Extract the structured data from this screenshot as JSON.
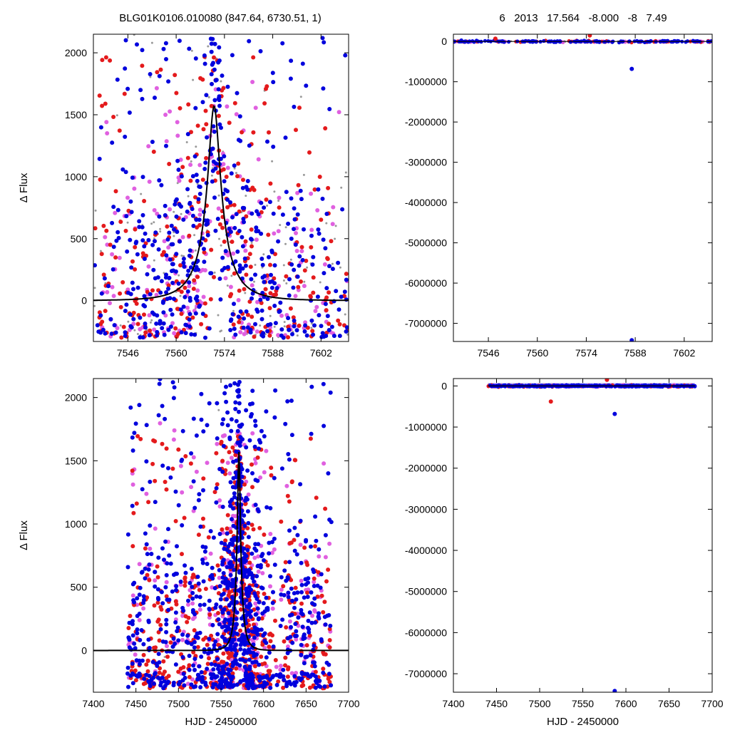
{
  "header": {
    "left_title": "BLG01K0106.010080 (847.64, 6730.51,    1)",
    "right_title": "6   2013   17.564   -8.000   -8   7.49"
  },
  "colors": {
    "gray": "#999999",
    "violet": "#e060e0",
    "red": "#e41a1c",
    "blue": "#0000dd",
    "model": "#000000"
  },
  "chart_data": [
    {
      "type": "scatter",
      "xlabel": "",
      "ylabel": "Δ Flux",
      "xlim": [
        7536,
        7610
      ],
      "ylim": [
        -330,
        2150
      ],
      "xticks": [
        7546,
        7560,
        7574,
        7588,
        7602
      ],
      "yticks": [
        0,
        500,
        1000,
        1500,
        2000
      ],
      "model_curve": {
        "t0": 7571,
        "peak": 1570,
        "tE": 9,
        "u0": 0.2,
        "baseline": 0
      },
      "series": [
        {
          "color": "gray",
          "approx_points": 150,
          "x_range": [
            7536,
            7610
          ],
          "y_range": [
            -300,
            2150
          ]
        },
        {
          "color": "violet",
          "approx_points": 200,
          "x_range": [
            7538,
            7610
          ],
          "y_range": [
            -300,
            1850
          ]
        },
        {
          "color": "red",
          "approx_points": 300,
          "x_range": [
            7536,
            7610
          ],
          "y_range": [
            -300,
            1970
          ]
        },
        {
          "color": "blue",
          "approx_points": 500,
          "x_range": [
            7536,
            7610
          ],
          "y_range": [
            -300,
            2150
          ]
        }
      ]
    },
    {
      "type": "scatter",
      "xlabel": "",
      "ylabel": "",
      "xlim": [
        7536,
        7610
      ],
      "ylim": [
        -7450000,
        180000
      ],
      "xticks": [
        7546,
        7560,
        7574,
        7588,
        7602
      ],
      "yticks": [
        0,
        -1000000,
        -2000000,
        -3000000,
        -4000000,
        -5000000,
        -6000000,
        -7000000
      ],
      "outliers": [
        {
          "x": 7587,
          "y": -680000
        },
        {
          "x": 7587,
          "y": -7420000
        },
        {
          "x": 7548,
          "y": 70000
        },
        {
          "x": 7575,
          "y": 150000
        }
      ]
    },
    {
      "type": "scatter",
      "xlabel": "HJD - 2450000",
      "ylabel": "Δ Flux",
      "xlim": [
        7400,
        7700
      ],
      "ylim": [
        -330,
        2150
      ],
      "xticks": [
        7400,
        7450,
        7500,
        7550,
        7600,
        7650,
        7700
      ],
      "yticks": [
        0,
        500,
        1000,
        1500,
        2000
      ],
      "model_curve": {
        "t0": 7571,
        "peak": 1570,
        "tE": 9,
        "u0": 0.2,
        "baseline": 0
      },
      "series": [
        {
          "color": "gray",
          "approx_points": 300,
          "x_range": [
            7440,
            7680
          ],
          "y_range": [
            -300,
            2150
          ]
        },
        {
          "color": "violet",
          "approx_points": 400,
          "x_range": [
            7440,
            7680
          ],
          "y_range": [
            -300,
            1800
          ]
        },
        {
          "color": "red",
          "approx_points": 600,
          "x_range": [
            7440,
            7680
          ],
          "y_range": [
            -300,
            1700
          ]
        },
        {
          "color": "blue",
          "approx_points": 1000,
          "x_range": [
            7440,
            7680
          ],
          "y_range": [
            -300,
            2150
          ]
        }
      ]
    },
    {
      "type": "scatter",
      "xlabel": "HJD - 2450000",
      "ylabel": "",
      "xlim": [
        7400,
        7700
      ],
      "ylim": [
        -7450000,
        180000
      ],
      "xticks": [
        7400,
        7450,
        7500,
        7550,
        7600,
        7650,
        7700
      ],
      "yticks": [
        0,
        -1000000,
        -2000000,
        -3000000,
        -4000000,
        -5000000,
        -6000000,
        -7000000
      ],
      "outliers": [
        {
          "x": 7587,
          "y": -680000
        },
        {
          "x": 7587,
          "y": -7420000
        },
        {
          "x": 7513,
          "y": -380000
        },
        {
          "x": 7578,
          "y": 150000
        }
      ]
    }
  ]
}
